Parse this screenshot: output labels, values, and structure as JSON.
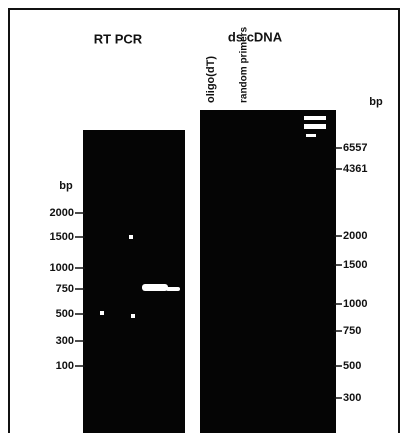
{
  "rt_pcr": {
    "title": "RT PCR",
    "bp_label": "bp",
    "markers": [
      "2000",
      "1500",
      "1000",
      "750",
      "500",
      "300",
      "100"
    ]
  },
  "ds_cdna": {
    "title": "ds cDNA",
    "lanes": [
      "oligo(dT)",
      "random primers"
    ],
    "bp_label": "bp",
    "markers": [
      "6557",
      "4361",
      "2000",
      "1500",
      "1000",
      "750",
      "500",
      "300"
    ]
  }
}
